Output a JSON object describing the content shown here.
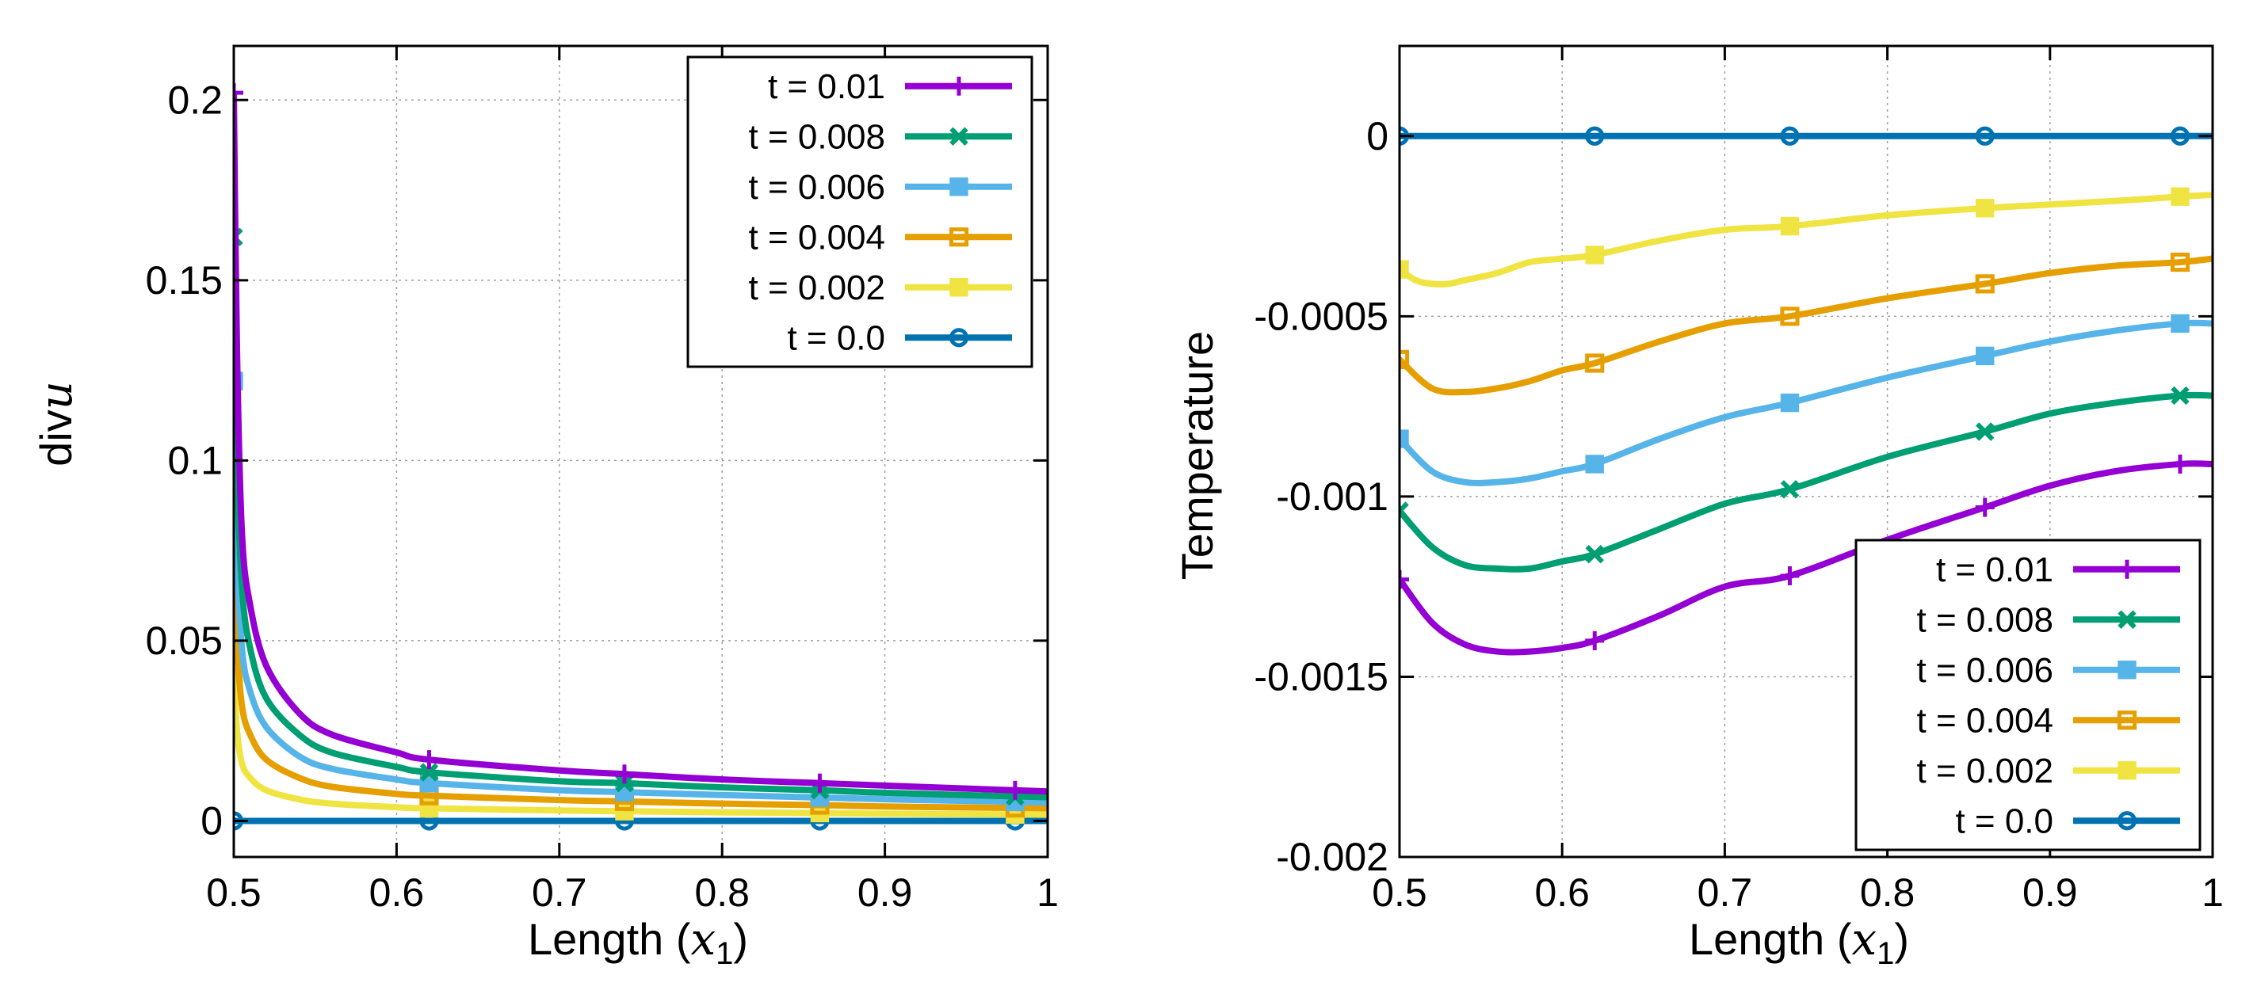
{
  "colors": {
    "t001": "#9400d3",
    "t0008": "#009e73",
    "t0006": "#56b4e9",
    "t0004": "#e69f00",
    "t0002": "#f0e442",
    "t00": "#0072b2"
  },
  "chart_data": [
    {
      "type": "line",
      "xlabel": "Length",
      "xlabel_math": "x",
      "xlabel_sub": "1",
      "ylabel": "div",
      "ylabel_math": "u",
      "xlim": [
        0.5,
        1.0
      ],
      "ylim": [
        -0.01,
        0.215
      ],
      "x_ticks": [
        0.5,
        0.6,
        0.7,
        0.8,
        0.9,
        1.0
      ],
      "x_tick_labels": [
        "0.5",
        "0.6",
        "0.7",
        "0.8",
        "0.9",
        "1"
      ],
      "y_ticks": [
        0,
        0.05,
        0.1,
        0.15,
        0.2
      ],
      "y_tick_labels": [
        "0",
        "0.05",
        "0.1",
        "0.15",
        "0.2"
      ],
      "grid": true,
      "legend_position": "top-right",
      "series": [
        {
          "name": "t = 0.01",
          "color": "#9400d3",
          "marker": "plus",
          "x": [
            0.5,
            0.502,
            0.505,
            0.51,
            0.52,
            0.54,
            0.56,
            0.6,
            0.62,
            0.7,
            0.74,
            0.8,
            0.86,
            0.9,
            0.98,
            1.0
          ],
          "y": [
            0.202,
            0.13,
            0.08,
            0.06,
            0.043,
            0.03,
            0.024,
            0.019,
            0.017,
            0.014,
            0.013,
            0.0115,
            0.0105,
            0.0098,
            0.0085,
            0.0082
          ],
          "marker_x": [
            0.5,
            0.62,
            0.74,
            0.86,
            0.98
          ],
          "marker_y": [
            0.202,
            0.017,
            0.013,
            0.0105,
            0.0085
          ]
        },
        {
          "name": "t = 0.008",
          "color": "#009e73",
          "marker": "cross",
          "x": [
            0.5,
            0.502,
            0.505,
            0.51,
            0.52,
            0.54,
            0.56,
            0.6,
            0.62,
            0.7,
            0.74,
            0.8,
            0.86,
            0.9,
            0.98,
            1.0
          ],
          "y": [
            0.162,
            0.1,
            0.065,
            0.048,
            0.034,
            0.024,
            0.019,
            0.015,
            0.0135,
            0.011,
            0.0105,
            0.0093,
            0.0085,
            0.0078,
            0.0068,
            0.0066
          ],
          "marker_x": [
            0.5,
            0.62,
            0.74,
            0.86,
            0.98
          ],
          "marker_y": [
            0.162,
            0.0135,
            0.0105,
            0.0085,
            0.0068
          ]
        },
        {
          "name": "t = 0.006",
          "color": "#56b4e9",
          "marker": "square-filled",
          "x": [
            0.5,
            0.502,
            0.505,
            0.51,
            0.52,
            0.54,
            0.56,
            0.6,
            0.62,
            0.7,
            0.74,
            0.8,
            0.86,
            0.9,
            0.98,
            1.0
          ],
          "y": [
            0.122,
            0.075,
            0.048,
            0.036,
            0.026,
            0.018,
            0.0145,
            0.0115,
            0.0105,
            0.0085,
            0.008,
            0.0072,
            0.0065,
            0.006,
            0.0053,
            0.0051
          ],
          "marker_x": [
            0.5,
            0.62,
            0.74,
            0.86,
            0.98
          ],
          "marker_y": [
            0.122,
            0.0105,
            0.008,
            0.0065,
            0.0053
          ]
        },
        {
          "name": "t = 0.004",
          "color": "#e69f00",
          "marker": "square",
          "x": [
            0.5,
            0.502,
            0.505,
            0.51,
            0.52,
            0.54,
            0.56,
            0.6,
            0.62,
            0.7,
            0.74,
            0.8,
            0.86,
            0.9,
            0.98,
            1.0
          ],
          "y": [
            0.081,
            0.05,
            0.032,
            0.024,
            0.017,
            0.012,
            0.0095,
            0.0075,
            0.007,
            0.0058,
            0.0054,
            0.0048,
            0.0044,
            0.004,
            0.0036,
            0.0035
          ],
          "marker_x": [
            0.5,
            0.62,
            0.74,
            0.86,
            0.98
          ],
          "marker_y": [
            0.081,
            0.007,
            0.0054,
            0.0044,
            0.0036
          ]
        },
        {
          "name": "t = 0.002",
          "color": "#f0e442",
          "marker": "square-filled",
          "x": [
            0.5,
            0.502,
            0.505,
            0.51,
            0.52,
            0.54,
            0.56,
            0.6,
            0.62,
            0.7,
            0.74,
            0.8,
            0.86,
            0.9,
            0.98,
            1.0
          ],
          "y": [
            0.04,
            0.025,
            0.016,
            0.012,
            0.0085,
            0.006,
            0.0048,
            0.0038,
            0.0035,
            0.0029,
            0.0027,
            0.0024,
            0.0022,
            0.002,
            0.0018,
            0.0017
          ],
          "marker_x": [
            0.5,
            0.62,
            0.74,
            0.86,
            0.98
          ],
          "marker_y": [
            0.04,
            0.0035,
            0.0027,
            0.0022,
            0.0018
          ]
        },
        {
          "name": "t = 0.0",
          "color": "#0072b2",
          "marker": "circle",
          "x": [
            0.5,
            1.0
          ],
          "y": [
            0,
            0
          ],
          "marker_x": [
            0.5,
            0.62,
            0.74,
            0.86,
            0.98
          ],
          "marker_y": [
            0,
            0,
            0,
            0,
            0
          ]
        }
      ]
    },
    {
      "type": "line",
      "xlabel": "Length",
      "xlabel_math": "x",
      "xlabel_sub": "1",
      "ylabel": "Temperature",
      "xlim": [
        0.5,
        1.0
      ],
      "ylim": [
        -0.002,
        0.00025
      ],
      "x_ticks": [
        0.5,
        0.6,
        0.7,
        0.8,
        0.9,
        1.0
      ],
      "x_tick_labels": [
        "0.5",
        "0.6",
        "0.7",
        "0.8",
        "0.9",
        "1"
      ],
      "y_ticks": [
        0,
        -0.0005,
        -0.001,
        -0.0015,
        -0.002
      ],
      "y_tick_labels": [
        "0",
        "-0.0005",
        "-0.001",
        "-0.0015",
        "-0.002"
      ],
      "grid": true,
      "legend_position": "bottom-right",
      "series": [
        {
          "name": "t = 0.01",
          "color": "#9400d3",
          "marker": "plus",
          "x": [
            0.5,
            0.52,
            0.54,
            0.56,
            0.58,
            0.6,
            0.62,
            0.66,
            0.7,
            0.74,
            0.8,
            0.86,
            0.9,
            0.94,
            0.98,
            1.0
          ],
          "y": [
            -0.00123,
            -0.00135,
            -0.00141,
            -0.00143,
            -0.00143,
            -0.00142,
            -0.0014,
            -0.00133,
            -0.00125,
            -0.00122,
            -0.00112,
            -0.00103,
            -0.00097,
            -0.00093,
            -0.00091,
            -0.00091
          ],
          "marker_x": [
            0.5,
            0.62,
            0.74,
            0.86,
            0.98
          ],
          "marker_y": [
            -0.00123,
            -0.0014,
            -0.00122,
            -0.00103,
            -0.00091
          ]
        },
        {
          "name": "t = 0.008",
          "color": "#009e73",
          "marker": "cross",
          "x": [
            0.5,
            0.52,
            0.54,
            0.56,
            0.58,
            0.6,
            0.62,
            0.66,
            0.7,
            0.74,
            0.8,
            0.86,
            0.9,
            0.94,
            0.98,
            1.0
          ],
          "y": [
            -0.00104,
            -0.00114,
            -0.00119,
            -0.0012,
            -0.0012,
            -0.00118,
            -0.00116,
            -0.00109,
            -0.00102,
            -0.00098,
            -0.00089,
            -0.00082,
            -0.00077,
            -0.00074,
            -0.00072,
            -0.00072
          ],
          "marker_x": [
            0.5,
            0.62,
            0.74,
            0.86,
            0.98
          ],
          "marker_y": [
            -0.00104,
            -0.00116,
            -0.00098,
            -0.00082,
            -0.00072
          ]
        },
        {
          "name": "t = 0.006",
          "color": "#56b4e9",
          "marker": "square-filled",
          "x": [
            0.5,
            0.52,
            0.54,
            0.56,
            0.58,
            0.6,
            0.62,
            0.66,
            0.7,
            0.74,
            0.8,
            0.86,
            0.9,
            0.94,
            0.98,
            1.0
          ],
          "y": [
            -0.00084,
            -0.00093,
            -0.00096,
            -0.00096,
            -0.00095,
            -0.00093,
            -0.00091,
            -0.00084,
            -0.00078,
            -0.00074,
            -0.00067,
            -0.00061,
            -0.00057,
            -0.00054,
            -0.00052,
            -0.00052
          ],
          "marker_x": [
            0.5,
            0.62,
            0.74,
            0.86,
            0.98
          ],
          "marker_y": [
            -0.00084,
            -0.00091,
            -0.00074,
            -0.00061,
            -0.00052
          ]
        },
        {
          "name": "t = 0.004",
          "color": "#e69f00",
          "marker": "square",
          "x": [
            0.5,
            0.52,
            0.54,
            0.56,
            0.58,
            0.6,
            0.62,
            0.66,
            0.7,
            0.74,
            0.8,
            0.86,
            0.9,
            0.94,
            0.98,
            1.0
          ],
          "y": [
            -0.00062,
            -0.0007,
            -0.00071,
            -0.0007,
            -0.00068,
            -0.00065,
            -0.00063,
            -0.00057,
            -0.00052,
            -0.0005,
            -0.00045,
            -0.00041,
            -0.00038,
            -0.00036,
            -0.00035,
            -0.00034
          ],
          "marker_x": [
            0.5,
            0.62,
            0.74,
            0.86,
            0.98
          ],
          "marker_y": [
            -0.00062,
            -0.00063,
            -0.0005,
            -0.00041,
            -0.00035
          ]
        },
        {
          "name": "t = 0.002",
          "color": "#f0e442",
          "marker": "square-filled",
          "x": [
            0.5,
            0.51,
            0.52,
            0.53,
            0.54,
            0.56,
            0.58,
            0.6,
            0.62,
            0.66,
            0.7,
            0.74,
            0.8,
            0.86,
            0.9,
            0.94,
            0.98,
            1.0
          ],
          "y": [
            -0.00037,
            -0.0004,
            -0.00041,
            -0.00041,
            -0.0004,
            -0.00038,
            -0.00035,
            -0.00034,
            -0.00033,
            -0.00029,
            -0.00026,
            -0.00025,
            -0.00022,
            -0.0002,
            -0.00019,
            -0.00018,
            -0.000168,
            -0.000163
          ],
          "marker_x": [
            0.5,
            0.62,
            0.74,
            0.86,
            0.98
          ],
          "marker_y": [
            -0.00037,
            -0.00033,
            -0.00025,
            -0.0002,
            -0.000168
          ]
        },
        {
          "name": "t = 0.0",
          "color": "#0072b2",
          "marker": "circle",
          "x": [
            0.5,
            1.0
          ],
          "y": [
            0,
            0
          ],
          "marker_x": [
            0.5,
            0.62,
            0.74,
            0.86,
            0.98
          ],
          "marker_y": [
            0,
            0,
            0,
            0,
            0
          ]
        }
      ]
    }
  ]
}
